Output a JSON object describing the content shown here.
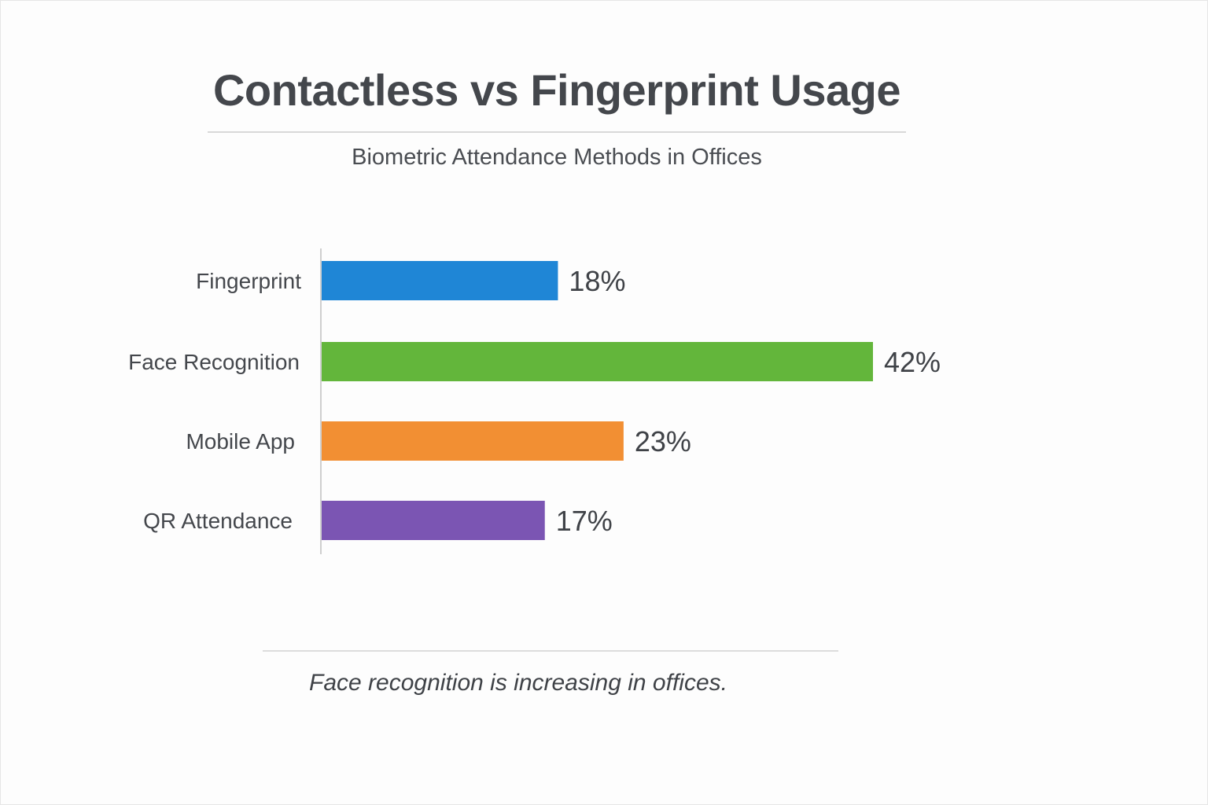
{
  "title": "Contactless vs Fingerprint Usage",
  "subtitle": "Biometric Attendance Methods in Offices",
  "footnote": "Face recognition is increasing in offices.",
  "chart_data": {
    "type": "bar",
    "orientation": "horizontal",
    "categories": [
      "Fingerprint",
      "Face Recognition",
      "Mobile App",
      "QR Attendance"
    ],
    "values": [
      18,
      42,
      23,
      17
    ],
    "value_labels": [
      "18%",
      "42%",
      "23%",
      "17%"
    ],
    "colors": [
      "#1f86d6",
      "#63b63b",
      "#f28f33",
      "#7b55b3"
    ],
    "unit": "%",
    "title": "Contactless vs Fingerprint Usage",
    "subtitle": "Biometric Attendance Methods in Offices",
    "grid": false,
    "legend": "none"
  }
}
